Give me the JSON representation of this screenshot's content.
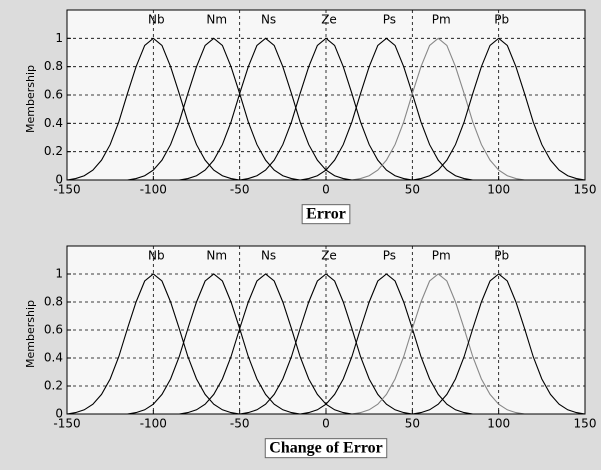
{
  "chart_data": [
    {
      "type": "line",
      "xlabel": "Error",
      "ylabel": "Membership",
      "x": [
        -150,
        -145,
        -140,
        -135,
        -130,
        -125,
        -120,
        -115,
        -110,
        -105,
        -100,
        -95,
        -90,
        -85,
        -80,
        -75,
        -70,
        -65,
        -60,
        -55,
        -50,
        -45,
        -40,
        -35,
        -30,
        -25,
        -20,
        -15,
        -10,
        -5,
        0,
        5,
        10,
        15,
        20,
        25,
        30,
        35,
        40,
        45,
        50,
        55,
        60,
        65,
        70,
        75,
        80,
        85,
        90,
        95,
        100,
        105,
        110,
        115,
        120,
        125,
        130,
        135,
        140,
        145,
        150
      ],
      "series": [
        {
          "name": "Nb",
          "color": "#000000",
          "values": [
            0,
            0.01,
            0.03,
            0.07,
            0.14,
            0.25,
            0.41,
            0.61,
            0.8,
            0.95,
            1,
            0.95,
            0.8,
            0.61,
            0.41,
            0.25,
            0.14,
            0.07,
            0.03,
            0.01,
            0,
            0,
            0,
            0,
            0,
            0,
            0,
            0,
            0,
            0,
            0,
            0,
            0,
            0,
            0,
            0,
            0,
            0,
            0,
            0,
            0,
            0,
            0,
            0,
            0,
            0,
            0,
            0,
            0,
            0,
            0,
            0,
            0,
            0,
            0,
            0,
            0,
            0,
            0,
            0,
            0
          ]
        },
        {
          "name": "Nm",
          "color": "#000000",
          "values": [
            0,
            0,
            0,
            0,
            0,
            0,
            0,
            0,
            0.01,
            0.03,
            0.07,
            0.14,
            0.25,
            0.41,
            0.61,
            0.8,
            0.95,
            1,
            0.95,
            0.8,
            0.61,
            0.41,
            0.25,
            0.14,
            0.07,
            0.03,
            0.01,
            0,
            0,
            0,
            0,
            0,
            0,
            0,
            0,
            0,
            0,
            0,
            0,
            0,
            0,
            0,
            0,
            0,
            0,
            0,
            0,
            0,
            0,
            0,
            0,
            0,
            0,
            0,
            0,
            0,
            0,
            0,
            0,
            0,
            0
          ]
        },
        {
          "name": "Ns",
          "color": "#000000",
          "values": [
            0,
            0,
            0,
            0,
            0,
            0,
            0,
            0,
            0,
            0,
            0,
            0,
            0,
            0,
            0.01,
            0.03,
            0.07,
            0.14,
            0.25,
            0.41,
            0.61,
            0.8,
            0.95,
            1,
            0.95,
            0.8,
            0.61,
            0.41,
            0.25,
            0.14,
            0.07,
            0.03,
            0.01,
            0,
            0,
            0,
            0,
            0,
            0,
            0,
            0,
            0,
            0,
            0,
            0,
            0,
            0,
            0,
            0,
            0,
            0,
            0,
            0,
            0,
            0,
            0,
            0,
            0,
            0,
            0,
            0
          ]
        },
        {
          "name": "Ze",
          "color": "#000000",
          "values": [
            0,
            0,
            0,
            0,
            0,
            0,
            0,
            0,
            0,
            0,
            0,
            0,
            0,
            0,
            0,
            0,
            0,
            0,
            0,
            0,
            0,
            0.01,
            0.03,
            0.07,
            0.14,
            0.25,
            0.41,
            0.61,
            0.8,
            0.95,
            1,
            0.95,
            0.8,
            0.61,
            0.41,
            0.25,
            0.14,
            0.07,
            0.03,
            0.01,
            0,
            0,
            0,
            0,
            0,
            0,
            0,
            0,
            0,
            0,
            0,
            0,
            0,
            0,
            0,
            0,
            0,
            0,
            0,
            0,
            0
          ]
        },
        {
          "name": "Ps",
          "color": "#000000",
          "values": [
            0,
            0,
            0,
            0,
            0,
            0,
            0,
            0,
            0,
            0,
            0,
            0,
            0,
            0,
            0,
            0,
            0,
            0,
            0,
            0,
            0,
            0,
            0,
            0,
            0,
            0,
            0,
            0,
            0.01,
            0.03,
            0.07,
            0.14,
            0.25,
            0.41,
            0.61,
            0.8,
            0.95,
            1,
            0.95,
            0.8,
            0.61,
            0.41,
            0.25,
            0.14,
            0.07,
            0.03,
            0.01,
            0,
            0,
            0,
            0,
            0,
            0,
            0,
            0,
            0,
            0,
            0,
            0,
            0,
            0
          ]
        },
        {
          "name": "Pm",
          "color": "#888888",
          "values": [
            0,
            0,
            0,
            0,
            0,
            0,
            0,
            0,
            0,
            0,
            0,
            0,
            0,
            0,
            0,
            0,
            0,
            0,
            0,
            0,
            0,
            0,
            0,
            0,
            0,
            0,
            0,
            0,
            0,
            0,
            0,
            0,
            0,
            0,
            0.01,
            0.03,
            0.07,
            0.14,
            0.25,
            0.41,
            0.61,
            0.8,
            0.95,
            1,
            0.95,
            0.8,
            0.61,
            0.41,
            0.25,
            0.14,
            0.07,
            0.03,
            0.01,
            0,
            0,
            0,
            0,
            0,
            0,
            0,
            0
          ]
        },
        {
          "name": "Pb",
          "color": "#000000",
          "values": [
            0,
            0,
            0,
            0,
            0,
            0,
            0,
            0,
            0,
            0,
            0,
            0,
            0,
            0,
            0,
            0,
            0,
            0,
            0,
            0,
            0,
            0,
            0,
            0,
            0,
            0,
            0,
            0,
            0,
            0,
            0,
            0,
            0,
            0,
            0,
            0,
            0,
            0,
            0,
            0,
            0,
            0.01,
            0.03,
            0.07,
            0.14,
            0.25,
            0.41,
            0.61,
            0.8,
            0.95,
            1,
            0.95,
            0.8,
            0.61,
            0.41,
            0.25,
            0.14,
            0.07,
            0.03,
            0.01,
            0
          ]
        }
      ],
      "xlim": [
        -150,
        150
      ],
      "xticks": [
        -150,
        -100,
        -50,
        0,
        50,
        100,
        150
      ],
      "ylim": [
        0,
        1.2
      ],
      "yticks": [
        0,
        0.2,
        0.4,
        0.6,
        0.8,
        1
      ],
      "grid": true
    },
    {
      "type": "line",
      "xlabel": "Change of Error",
      "ylabel": "Membership",
      "x": [
        -150,
        -145,
        -140,
        -135,
        -130,
        -125,
        -120,
        -115,
        -110,
        -105,
        -100,
        -95,
        -90,
        -85,
        -80,
        -75,
        -70,
        -65,
        -60,
        -55,
        -50,
        -45,
        -40,
        -35,
        -30,
        -25,
        -20,
        -15,
        -10,
        -5,
        0,
        5,
        10,
        15,
        20,
        25,
        30,
        35,
        40,
        45,
        50,
        55,
        60,
        65,
        70,
        75,
        80,
        85,
        90,
        95,
        100,
        105,
        110,
        115,
        120,
        125,
        130,
        135,
        140,
        145,
        150
      ],
      "series": [
        {
          "name": "Nb",
          "color": "#000000",
          "values": [
            0,
            0.01,
            0.03,
            0.07,
            0.14,
            0.25,
            0.41,
            0.61,
            0.8,
            0.95,
            1,
            0.95,
            0.8,
            0.61,
            0.41,
            0.25,
            0.14,
            0.07,
            0.03,
            0.01,
            0,
            0,
            0,
            0,
            0,
            0,
            0,
            0,
            0,
            0,
            0,
            0,
            0,
            0,
            0,
            0,
            0,
            0,
            0,
            0,
            0,
            0,
            0,
            0,
            0,
            0,
            0,
            0,
            0,
            0,
            0,
            0,
            0,
            0,
            0,
            0,
            0,
            0,
            0,
            0,
            0
          ]
        },
        {
          "name": "Nm",
          "color": "#000000",
          "values": [
            0,
            0,
            0,
            0,
            0,
            0,
            0,
            0,
            0.01,
            0.03,
            0.07,
            0.14,
            0.25,
            0.41,
            0.61,
            0.8,
            0.95,
            1,
            0.95,
            0.8,
            0.61,
            0.41,
            0.25,
            0.14,
            0.07,
            0.03,
            0.01,
            0,
            0,
            0,
            0,
            0,
            0,
            0,
            0,
            0,
            0,
            0,
            0,
            0,
            0,
            0,
            0,
            0,
            0,
            0,
            0,
            0,
            0,
            0,
            0,
            0,
            0,
            0,
            0,
            0,
            0,
            0,
            0,
            0,
            0
          ]
        },
        {
          "name": "Ns",
          "color": "#000000",
          "values": [
            0,
            0,
            0,
            0,
            0,
            0,
            0,
            0,
            0,
            0,
            0,
            0,
            0,
            0,
            0.01,
            0.03,
            0.07,
            0.14,
            0.25,
            0.41,
            0.61,
            0.8,
            0.95,
            1,
            0.95,
            0.8,
            0.61,
            0.41,
            0.25,
            0.14,
            0.07,
            0.03,
            0.01,
            0,
            0,
            0,
            0,
            0,
            0,
            0,
            0,
            0,
            0,
            0,
            0,
            0,
            0,
            0,
            0,
            0,
            0,
            0,
            0,
            0,
            0,
            0,
            0,
            0,
            0,
            0,
            0
          ]
        },
        {
          "name": "Ze",
          "color": "#000000",
          "values": [
            0,
            0,
            0,
            0,
            0,
            0,
            0,
            0,
            0,
            0,
            0,
            0,
            0,
            0,
            0,
            0,
            0,
            0,
            0,
            0,
            0,
            0.01,
            0.03,
            0.07,
            0.14,
            0.25,
            0.41,
            0.61,
            0.8,
            0.95,
            1,
            0.95,
            0.8,
            0.61,
            0.41,
            0.25,
            0.14,
            0.07,
            0.03,
            0.01,
            0,
            0,
            0,
            0,
            0,
            0,
            0,
            0,
            0,
            0,
            0,
            0,
            0,
            0,
            0,
            0,
            0,
            0,
            0,
            0,
            0
          ]
        },
        {
          "name": "Ps",
          "color": "#000000",
          "values": [
            0,
            0,
            0,
            0,
            0,
            0,
            0,
            0,
            0,
            0,
            0,
            0,
            0,
            0,
            0,
            0,
            0,
            0,
            0,
            0,
            0,
            0,
            0,
            0,
            0,
            0,
            0,
            0,
            0.01,
            0.03,
            0.07,
            0.14,
            0.25,
            0.41,
            0.61,
            0.8,
            0.95,
            1,
            0.95,
            0.8,
            0.61,
            0.41,
            0.25,
            0.14,
            0.07,
            0.03,
            0.01,
            0,
            0,
            0,
            0,
            0,
            0,
            0,
            0,
            0,
            0,
            0,
            0,
            0,
            0
          ]
        },
        {
          "name": "Pm",
          "color": "#888888",
          "values": [
            0,
            0,
            0,
            0,
            0,
            0,
            0,
            0,
            0,
            0,
            0,
            0,
            0,
            0,
            0,
            0,
            0,
            0,
            0,
            0,
            0,
            0,
            0,
            0,
            0,
            0,
            0,
            0,
            0,
            0,
            0,
            0,
            0,
            0,
            0.01,
            0.03,
            0.07,
            0.14,
            0.25,
            0.41,
            0.61,
            0.8,
            0.95,
            1,
            0.95,
            0.8,
            0.61,
            0.41,
            0.25,
            0.14,
            0.07,
            0.03,
            0.01,
            0,
            0,
            0,
            0,
            0,
            0,
            0,
            0
          ]
        },
        {
          "name": "Pb",
          "color": "#000000",
          "values": [
            0,
            0,
            0,
            0,
            0,
            0,
            0,
            0,
            0,
            0,
            0,
            0,
            0,
            0,
            0,
            0,
            0,
            0,
            0,
            0,
            0,
            0,
            0,
            0,
            0,
            0,
            0,
            0,
            0,
            0,
            0,
            0,
            0,
            0,
            0,
            0,
            0,
            0,
            0,
            0,
            0,
            0.01,
            0.03,
            0.07,
            0.14,
            0.25,
            0.41,
            0.61,
            0.8,
            0.95,
            1,
            0.95,
            0.8,
            0.61,
            0.41,
            0.25,
            0.14,
            0.07,
            0.03,
            0.01,
            0
          ]
        }
      ],
      "xlim": [
        -150,
        150
      ],
      "xticks": [
        -150,
        -100,
        -50,
        0,
        50,
        100,
        150
      ],
      "ylim": [
        0,
        1.2
      ],
      "yticks": [
        0,
        0.2,
        0.4,
        0.6,
        0.8,
        1
      ],
      "grid": true
    }
  ]
}
